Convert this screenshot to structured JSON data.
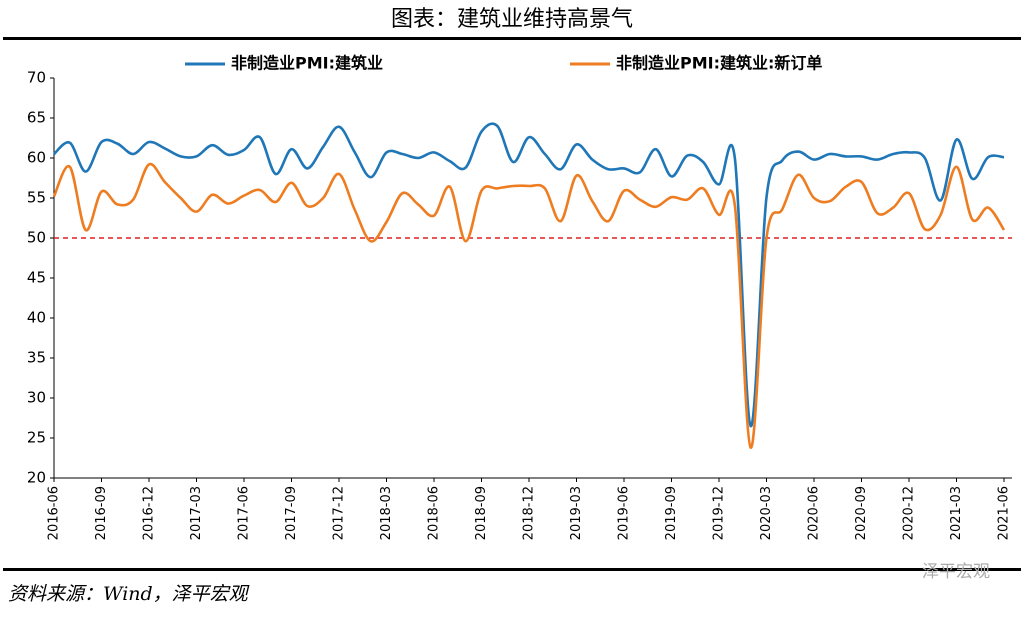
{
  "chart_data": {
    "type": "line",
    "title": "图表：建筑业维持高景气",
    "source": "资料来源：Wind，泽平宏观",
    "watermark": "泽平宏观",
    "categories": [
      "2016-06",
      null,
      null,
      "2016-09",
      null,
      null,
      "2016-12",
      null,
      null,
      "2017-03",
      null,
      null,
      "2017-06",
      null,
      null,
      "2017-09",
      null,
      null,
      "2017-12",
      null,
      null,
      "2018-03",
      null,
      null,
      "2018-06",
      null,
      null,
      "2018-09",
      null,
      null,
      "2018-12",
      null,
      null,
      "2019-03",
      null,
      null,
      "2019-06",
      null,
      null,
      "2019-09",
      null,
      null,
      "2019-12",
      null,
      null,
      "2020-03",
      null,
      null,
      "2020-06",
      null,
      null,
      "2020-09",
      null,
      null,
      "2020-12",
      null,
      null,
      "2021-03",
      null,
      null,
      "2021-06"
    ],
    "series": [
      {
        "name": "非制造业PMI:建筑业",
        "color": "#1f77b8",
        "values": [
          60.5,
          61.9,
          58.3,
          62.0,
          61.8,
          60.5,
          62.0,
          61.2,
          60.2,
          60.2,
          61.6,
          60.4,
          61.0,
          62.6,
          58.0,
          61.1,
          58.7,
          61.4,
          63.9,
          60.7,
          57.6,
          60.7,
          60.5,
          60.0,
          60.7,
          59.6,
          58.8,
          63.3,
          64.0,
          59.5,
          62.6,
          60.5,
          58.6,
          61.7,
          59.8,
          58.6,
          58.7,
          58.2,
          61.1,
          57.7,
          60.3,
          59.5,
          56.7,
          60.0,
          26.5,
          55.1,
          59.7,
          60.8,
          59.8,
          60.5,
          60.2,
          60.2,
          59.8,
          60.5,
          60.7,
          60.0,
          54.7,
          62.3,
          57.4,
          60.1,
          60.1
        ]
      },
      {
        "name": "非制造业PMI:建筑业:新订单",
        "color": "#ee7d22",
        "values": [
          55.2,
          58.9,
          51.0,
          55.8,
          54.2,
          54.8,
          59.2,
          57.0,
          55.0,
          53.3,
          55.4,
          54.3,
          55.3,
          56.0,
          54.5,
          56.9,
          54.0,
          55.0,
          58.0,
          53.5,
          49.6,
          52.0,
          55.6,
          54.2,
          52.8,
          56.4,
          49.6,
          55.9,
          56.2,
          56.5,
          56.5,
          56.2,
          52.1,
          57.8,
          54.6,
          52.1,
          55.9,
          54.8,
          53.9,
          55.1,
          54.8,
          56.2,
          52.9,
          54.1,
          23.8,
          50.0,
          53.6,
          57.9,
          55.0,
          54.6,
          56.4,
          57.0,
          53.1,
          53.8,
          55.6,
          51.1,
          52.9,
          58.9,
          52.3,
          53.8,
          51.0
        ]
      }
    ],
    "ylim": [
      20,
      70
    ],
    "yticks": [
      20,
      25,
      30,
      35,
      40,
      45,
      50,
      55,
      60,
      65,
      70
    ],
    "reference_line": {
      "value": 50,
      "color": "#e02020"
    }
  }
}
